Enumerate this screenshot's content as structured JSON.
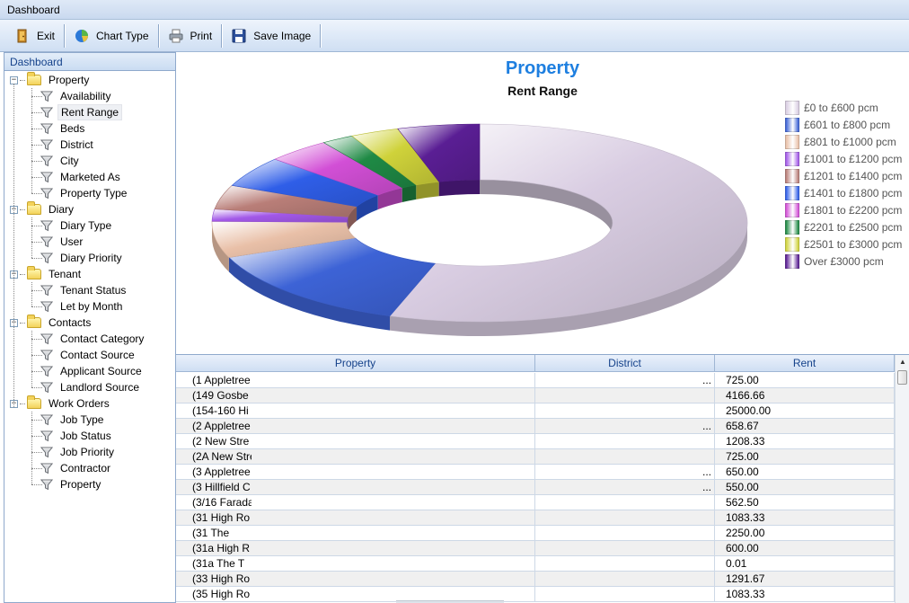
{
  "window": {
    "title": "Dashboard"
  },
  "toolbar": {
    "exit_label": "Exit",
    "chart_type_label": "Chart Type",
    "print_label": "Print",
    "save_image_label": "Save Image"
  },
  "tree": {
    "header": "Dashboard",
    "groups": [
      {
        "label": "Property",
        "items": [
          "Availability",
          "Rent Range",
          "Beds",
          "District",
          "City",
          "Marketed As",
          "Property Type"
        ]
      },
      {
        "label": "Diary",
        "items": [
          "Diary Type",
          "User",
          "Diary Priority"
        ]
      },
      {
        "label": "Tenant",
        "items": [
          "Tenant Status",
          "Let by Month"
        ]
      },
      {
        "label": "Contacts",
        "items": [
          "Contact Category",
          "Contact Source",
          "Applicant Source",
          "Landlord Source"
        ]
      },
      {
        "label": "Work Orders",
        "items": [
          "Job Type",
          "Job Status",
          "Job Priority",
          "Contractor",
          "Property"
        ]
      }
    ],
    "selected": "Rent Range"
  },
  "chart_data": {
    "type": "pie",
    "title": "Property",
    "subtitle": "Rent Range",
    "donut": true,
    "legend_position": "right",
    "slices": [
      {
        "label": "£0 to £600 pcm",
        "value": 56,
        "color": "#d9cde2"
      },
      {
        "label": "£601 to £800 pcm",
        "value": 14,
        "color": "#3d63d6"
      },
      {
        "label": "£801 to £1000 pcm",
        "value": 6,
        "color": "#e9c0a8"
      },
      {
        "label": "£1001 to £1200 pcm",
        "value": 2,
        "color": "#a258e8"
      },
      {
        "label": "£1201 to £1400 pcm",
        "value": 4,
        "color": "#b97e78"
      },
      {
        "label": "£1401 to £1800 pcm",
        "value": 5,
        "color": "#2f5ee8"
      },
      {
        "label": "£1801 to £2200 pcm",
        "value": 4,
        "color": "#d24fd6"
      },
      {
        "label": "£2201 to £2500 pcm",
        "value": 2,
        "color": "#1f8a45"
      },
      {
        "label": "£2501 to £3000 pcm",
        "value": 3,
        "color": "#cfd23a"
      },
      {
        "label": "Over £3000 pcm",
        "value": 5,
        "color": "#5a1e94"
      }
    ]
  },
  "grid": {
    "columns": [
      "Property",
      "District",
      "Rent"
    ],
    "rows": [
      {
        "property": "(1 Appletree",
        "district": "...",
        "rent": "725.00"
      },
      {
        "property": "(149 Gosbe",
        "district": "",
        "rent": "4166.66"
      },
      {
        "property": "(154-160 Hi",
        "district": "",
        "rent": "25000.00"
      },
      {
        "property": "(2 Appletree",
        "district": "...",
        "rent": "658.67"
      },
      {
        "property": "(2 New Stre",
        "district": "",
        "rent": "1208.33"
      },
      {
        "property": "(2A New Stre",
        "district": "",
        "rent": "725.00"
      },
      {
        "property": "(3 Appletree",
        "district": "...",
        "rent": "650.00"
      },
      {
        "property": "(3 Hillfield C",
        "district": "...",
        "rent": "550.00"
      },
      {
        "property": "(3/16 Farada",
        "district": "",
        "rent": "562.50"
      },
      {
        "property": "(31 High Ro",
        "district": "",
        "rent": "1083.33"
      },
      {
        "property": "(31 The",
        "district": "",
        "rent": "2250.00"
      },
      {
        "property": "(31a High R",
        "district": "",
        "rent": "600.00"
      },
      {
        "property": "(31a The T",
        "district": "",
        "rent": "0.01"
      },
      {
        "property": "(33 High Ro",
        "district": "",
        "rent": "1291.67"
      },
      {
        "property": "(35 High Ro",
        "district": "",
        "rent": "1083.33"
      }
    ]
  }
}
